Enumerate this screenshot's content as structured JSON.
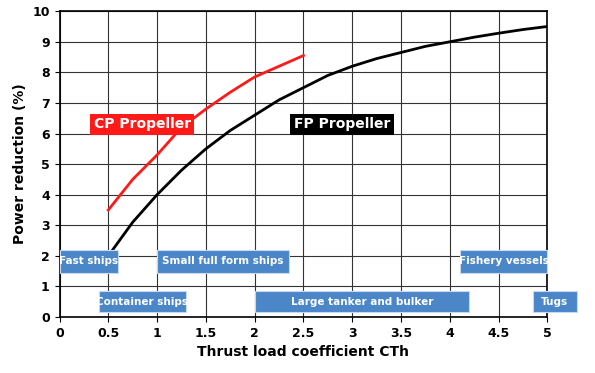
{
  "chart_data": {
    "type": "line",
    "x_label": "Thrust load coefficient CTh",
    "y_label": "Power reduction (%)",
    "xlim": [
      0,
      5
    ],
    "ylim": [
      0,
      10
    ],
    "xticks": [
      0,
      0.5,
      1,
      1.5,
      2,
      2.5,
      3,
      3.5,
      4,
      4.5,
      5
    ],
    "yticks": [
      0,
      1,
      2,
      3,
      4,
      5,
      6,
      7,
      8,
      9,
      10
    ],
    "grid": true,
    "series": [
      {
        "name": "CP Propeller",
        "color": "#ff1a1a",
        "x": [
          0.5,
          0.75,
          1,
          1.25,
          1.5,
          1.75,
          2,
          2.25,
          2.5
        ],
        "values": [
          3.5,
          4.5,
          5.3,
          6.2,
          6.8,
          7.35,
          7.85,
          8.2,
          8.55
        ]
      },
      {
        "name": "FP Propeller",
        "color": "#000000",
        "x": [
          0.5,
          0.75,
          1,
          1.25,
          1.5,
          1.75,
          2,
          2.25,
          2.5,
          2.75,
          3,
          3.25,
          3.5,
          3.75,
          4,
          4.25,
          4.5,
          4.75,
          5
        ],
        "values": [
          2.0,
          3.1,
          4.0,
          4.8,
          5.5,
          6.1,
          6.6,
          7.1,
          7.5,
          7.9,
          8.2,
          8.45,
          8.65,
          8.85,
          9.0,
          9.15,
          9.28,
          9.4,
          9.5
        ]
      }
    ],
    "annotations": [
      {
        "text": "Fast ships",
        "x": [
          0,
          0.6
        ]
      },
      {
        "text": "Container ships",
        "x": [
          0.4,
          1.3
        ]
      },
      {
        "text": "Small full form ships",
        "x": [
          1.0,
          2.35
        ]
      },
      {
        "text": "Large tanker and bulker",
        "x": [
          2.0,
          4.2
        ]
      },
      {
        "text": "Fishery vessels",
        "x": [
          4.1,
          5.0
        ]
      },
      {
        "text": "Tugs",
        "x": [
          4.85,
          5.3
        ]
      }
    ]
  }
}
